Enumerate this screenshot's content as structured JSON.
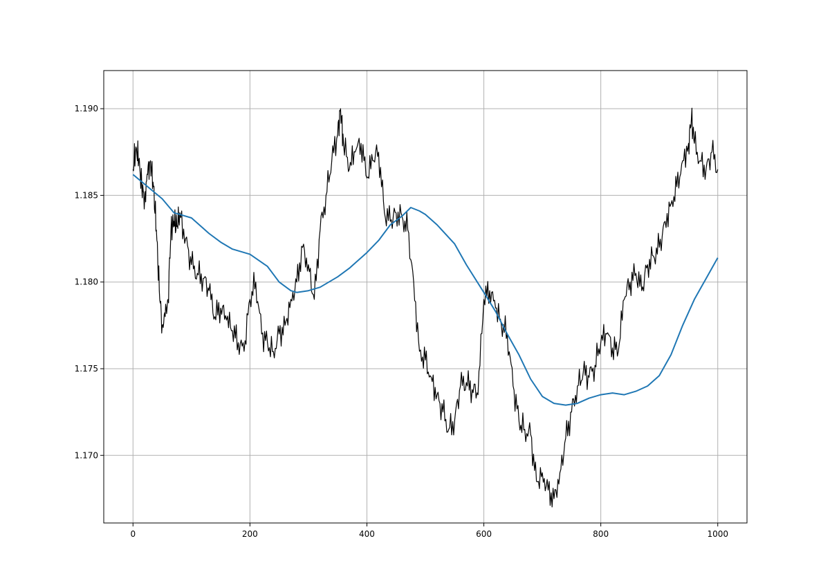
{
  "chart_data": {
    "type": "line",
    "title": "",
    "xlabel": "",
    "ylabel": "",
    "xlim": [
      -50,
      1050
    ],
    "ylim": [
      1.1661,
      1.1922
    ],
    "grid": true,
    "x_ticks": [
      0,
      200,
      400,
      600,
      800,
      1000
    ],
    "x_tick_labels": [
      "0",
      "200",
      "400",
      "600",
      "800",
      "1000"
    ],
    "y_ticks": [
      1.17,
      1.175,
      1.18,
      1.185,
      1.19
    ],
    "y_tick_labels": [
      "1.170",
      "1.175",
      "1.180",
      "1.185",
      "1.190"
    ],
    "colors": {
      "price": "#000000",
      "moving_average": "#1f77b4",
      "grid": "#b0b0b0",
      "axes": "#000000"
    },
    "series": [
      {
        "role": "price",
        "x": [
          0,
          5,
          10,
          15,
          20,
          25,
          30,
          35,
          40,
          45,
          50,
          55,
          60,
          65,
          70,
          75,
          80,
          90,
          100,
          110,
          120,
          130,
          140,
          150,
          160,
          170,
          180,
          190,
          200,
          210,
          220,
          230,
          240,
          250,
          260,
          270,
          280,
          290,
          300,
          310,
          320,
          330,
          340,
          350,
          355,
          360,
          370,
          380,
          390,
          400,
          410,
          420,
          430,
          440,
          450,
          460,
          470,
          480,
          490,
          500,
          510,
          520,
          530,
          540,
          550,
          560,
          570,
          580,
          590,
          600,
          610,
          620,
          630,
          640,
          650,
          660,
          670,
          680,
          690,
          700,
          710,
          720,
          730,
          740,
          750,
          760,
          770,
          780,
          790,
          800,
          810,
          820,
          830,
          840,
          850,
          860,
          870,
          880,
          890,
          900,
          910,
          920,
          930,
          940,
          950,
          955,
          960,
          970,
          980,
          990,
          1000
        ],
        "values": [
          1.1865,
          1.1878,
          1.187,
          1.1855,
          1.1848,
          1.1862,
          1.187,
          1.1855,
          1.183,
          1.1795,
          1.1775,
          1.178,
          1.179,
          1.183,
          1.1835,
          1.1832,
          1.184,
          1.1825,
          1.181,
          1.1805,
          1.1802,
          1.1795,
          1.178,
          1.1785,
          1.1778,
          1.1772,
          1.1765,
          1.176,
          1.179,
          1.18,
          1.177,
          1.1765,
          1.176,
          1.177,
          1.1775,
          1.179,
          1.18,
          1.182,
          1.181,
          1.179,
          1.183,
          1.185,
          1.187,
          1.1885,
          1.19,
          1.188,
          1.1865,
          1.1875,
          1.188,
          1.186,
          1.187,
          1.1875,
          1.184,
          1.1835,
          1.184,
          1.1838,
          1.183,
          1.18,
          1.176,
          1.1755,
          1.1745,
          1.1735,
          1.1725,
          1.1715,
          1.172,
          1.174,
          1.1742,
          1.1738,
          1.1735,
          1.179,
          1.1795,
          1.1785,
          1.1775,
          1.177,
          1.174,
          1.172,
          1.1715,
          1.1712,
          1.1685,
          1.169,
          1.168,
          1.1675,
          1.169,
          1.171,
          1.1725,
          1.174,
          1.1748,
          1.1745,
          1.1752,
          1.1765,
          1.177,
          1.1762,
          1.176,
          1.179,
          1.18,
          1.1805,
          1.1795,
          1.181,
          1.1815,
          1.182,
          1.1835,
          1.1845,
          1.1855,
          1.187,
          1.188,
          1.1895,
          1.188,
          1.187,
          1.1865,
          1.1875,
          1.1865
        ]
      },
      {
        "role": "moving_average",
        "x": [
          0,
          50,
          70,
          100,
          110,
          130,
          150,
          170,
          200,
          230,
          250,
          270,
          280,
          300,
          320,
          350,
          370,
          400,
          420,
          440,
          460,
          475,
          490,
          500,
          520,
          550,
          570,
          600,
          620,
          640,
          660,
          680,
          700,
          720,
          740,
          760,
          780,
          800,
          820,
          840,
          860,
          880,
          900,
          920,
          940,
          960,
          980,
          1000
        ],
        "values": [
          1.1862,
          1.1848,
          1.184,
          1.1837,
          1.1834,
          1.1828,
          1.1823,
          1.1819,
          1.1816,
          1.1809,
          1.18,
          1.1795,
          1.1794,
          1.1795,
          1.1797,
          1.1803,
          1.1808,
          1.1817,
          1.1824,
          1.1833,
          1.1838,
          1.1843,
          1.1841,
          1.1839,
          1.1833,
          1.1822,
          1.181,
          1.1794,
          1.1783,
          1.177,
          1.1758,
          1.1744,
          1.1734,
          1.173,
          1.1729,
          1.173,
          1.1733,
          1.1735,
          1.1736,
          1.1735,
          1.1737,
          1.174,
          1.1746,
          1.1758,
          1.1775,
          1.179,
          1.1802,
          1.1814
        ]
      }
    ]
  }
}
